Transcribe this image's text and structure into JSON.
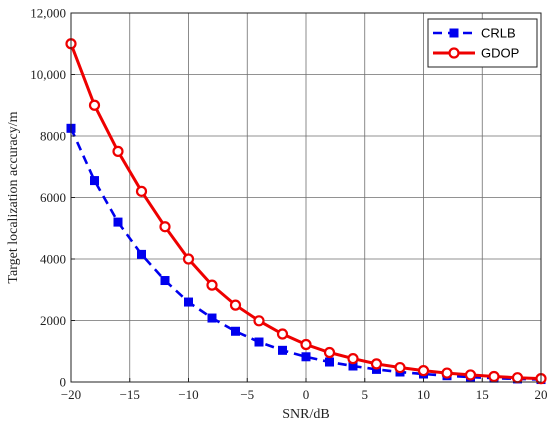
{
  "chart_data": {
    "type": "line",
    "title": "",
    "xlabel": "SNR/dB",
    "ylabel": "Target localization accuracy/m",
    "xlim": [
      -20,
      20
    ],
    "ylim": [
      0,
      12000
    ],
    "x_ticks": [
      -20,
      -15,
      -10,
      -5,
      0,
      5,
      10,
      15,
      20
    ],
    "x_tick_labels": [
      "−20",
      "−15",
      "−10",
      "−5",
      "0",
      "5",
      "10",
      "15",
      "20"
    ],
    "y_ticks": [
      0,
      2000,
      4000,
      6000,
      8000,
      10000,
      12000
    ],
    "y_tick_labels": [
      "0",
      "2000",
      "4000",
      "6000",
      "8000",
      "10,000",
      "12,000"
    ],
    "grid": true,
    "legend_position": "top-right",
    "x": [
      -20,
      -18,
      -16,
      -14,
      -12,
      -10,
      -8,
      -6,
      -4,
      -2,
      0,
      2,
      4,
      6,
      8,
      10,
      12,
      14,
      16,
      18,
      20
    ],
    "series": [
      {
        "name": "CRLB",
        "color": "#0000ee",
        "line_style": "dashed",
        "marker": "square",
        "values": [
          8250,
          6550,
          5200,
          4150,
          3300,
          2600,
          2080,
          1650,
          1300,
          1030,
          820,
          650,
          520,
          410,
          325,
          260,
          205,
          160,
          125,
          100,
          80
        ]
      },
      {
        "name": "GDOP",
        "color": "#ee0000",
        "line_style": "solid",
        "marker": "circle",
        "values": [
          11000,
          9000,
          7500,
          6200,
          5050,
          4000,
          3150,
          2500,
          1990,
          1560,
          1220,
          960,
          760,
          590,
          470,
          370,
          290,
          230,
          180,
          140,
          110
        ]
      }
    ]
  }
}
